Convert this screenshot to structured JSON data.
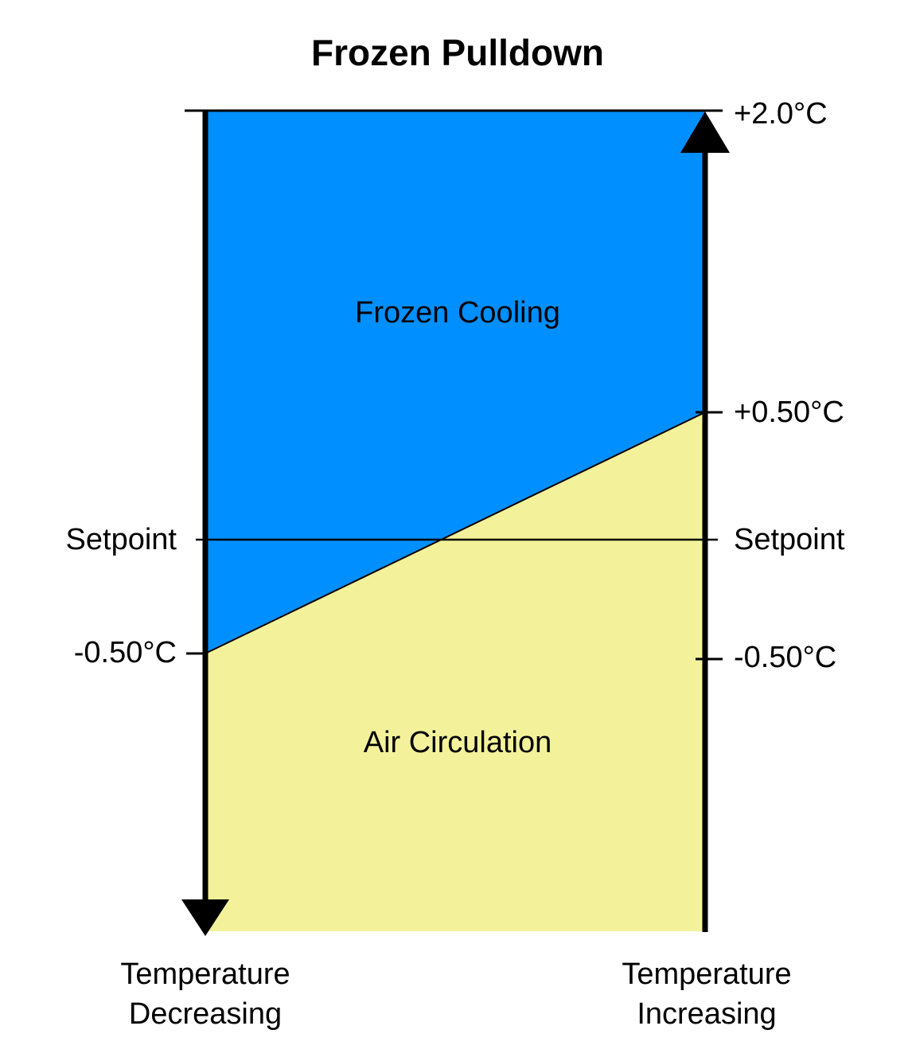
{
  "title": "Frozen Pulldown",
  "colors": {
    "cooling": "#008ffe",
    "circulation": "#f3f29b",
    "lines": "#000000"
  },
  "regions": {
    "upper": "Frozen Cooling",
    "lower": "Air Circulation"
  },
  "left_axis": {
    "setpoint_label": "Setpoint",
    "lower_tick": "-0.50°C",
    "caption_line1": "Temperature",
    "caption_line2": "Decreasing"
  },
  "right_axis": {
    "top_tick": "+2.0°C",
    "upper_tick": "+0.50°C",
    "setpoint_label": "Setpoint",
    "lower_tick": "-0.50°C",
    "caption_line1": "Temperature",
    "caption_line2": "Increasing"
  }
}
